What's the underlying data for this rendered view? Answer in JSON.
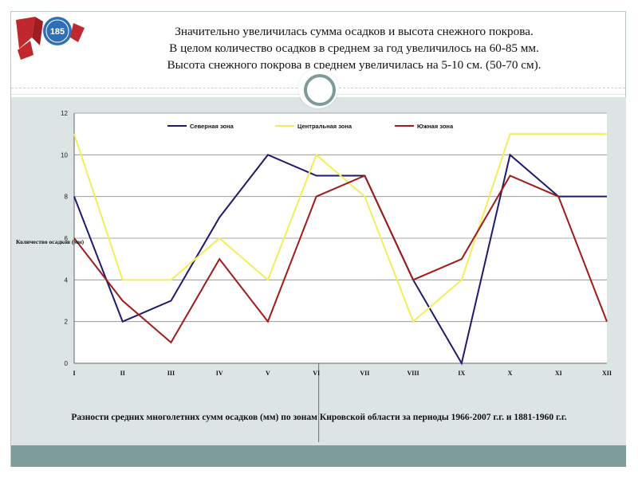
{
  "slide": {
    "title_lines": [
      "Значительно увеличилась сумма осадков и высота снежного покрова.",
      "В целом количество осадков в среднем за год увеличилось на 60-85 мм.",
      "Высота снежного покрова в среднем увеличилась на 5-10 см. (50-70 см)."
    ],
    "caption": "Разности средних многолетних сумм осадков (мм) по зонам Кировской области за периоды 1966-2007 г.г. и 1881-1960 г.г.",
    "logo_number": "185",
    "colors": {
      "panel": "#dde4e4",
      "bottom_bar": "#7e9c9c",
      "logo_red": "#c0282d",
      "logo_blue": "#2f6fb5"
    }
  },
  "chart_data": {
    "type": "line",
    "title": "",
    "xlabel": "",
    "ylabel": "Количество осадков (мм)",
    "categories": [
      "I",
      "II",
      "III",
      "IV",
      "V",
      "VI",
      "VII",
      "VIII",
      "IX",
      "X",
      "XI",
      "XII"
    ],
    "ylim": [
      0,
      12
    ],
    "yticks": [
      "0",
      "2",
      "4",
      "6",
      "8",
      "10",
      "12"
    ],
    "grid": true,
    "legend_position": "top",
    "series": [
      {
        "name": "Северная зона",
        "color": "#1f1a6e",
        "values": [
          8,
          2,
          3,
          7,
          10,
          9,
          9,
          4,
          0,
          10,
          8,
          8
        ]
      },
      {
        "name": "Центральная зона",
        "color": "#f2ee5a",
        "values": [
          11,
          4,
          4,
          6,
          4,
          10,
          8,
          2,
          4,
          11,
          11,
          11
        ]
      },
      {
        "name": "Южная зона",
        "color": "#a01a1a",
        "values": [
          6,
          3,
          1,
          5,
          2,
          8,
          9,
          4,
          5,
          9,
          8,
          2
        ]
      }
    ]
  }
}
